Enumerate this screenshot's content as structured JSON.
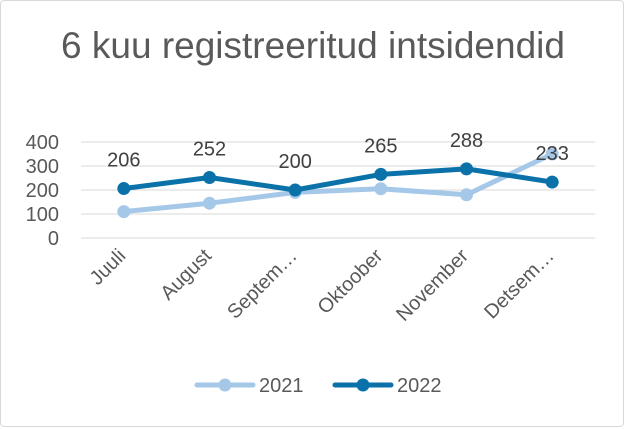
{
  "chart_data": {
    "type": "line",
    "title": "6 kuu registreeritud intsidendid",
    "xlabel": "",
    "ylabel": "",
    "categories": [
      "Juuli",
      "August",
      "Septem…",
      "Oktoober",
      "November",
      "Detsem…"
    ],
    "ylim": [
      0,
      400
    ],
    "yticks": [
      0,
      100,
      200,
      300,
      400
    ],
    "grid": true,
    "legend_position": "bottom",
    "series": [
      {
        "name": "2021",
        "values": [
          110,
          145,
          190,
          205,
          180,
          350
        ],
        "color": "#a6c8e8",
        "data_labels": false
      },
      {
        "name": "2022",
        "values": [
          206,
          252,
          200,
          265,
          288,
          233
        ],
        "color": "#0a72a8",
        "data_labels": true
      }
    ]
  }
}
